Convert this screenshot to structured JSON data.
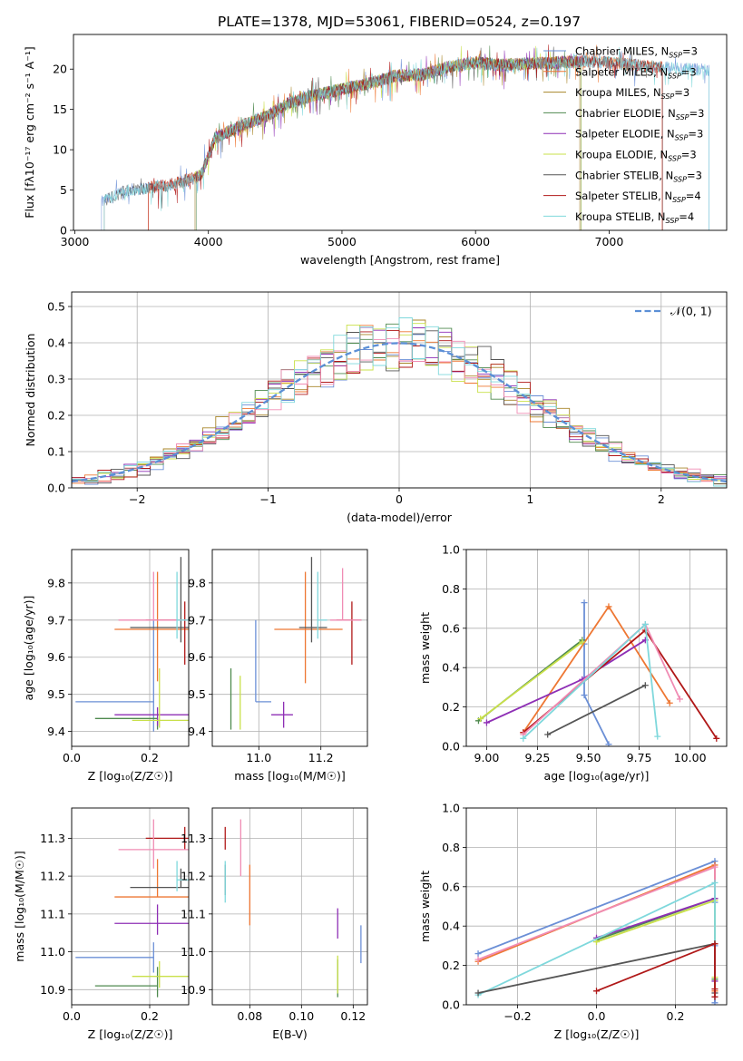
{
  "figure": {
    "title": "PLATE=1378, MJD=53061, FIBERID=0524, z=0.197"
  },
  "chart_data": [
    {
      "id": "spectrum",
      "type": "line",
      "xlabel": "wavelength [Angstrom, rest frame]",
      "ylabel": "Flux [fλ10⁻¹⁷ erg cm⁻² s⁻¹ A⁻¹]",
      "xlim": [
        2990,
        7880
      ],
      "ylim": [
        0,
        24.3
      ],
      "xticks": [
        3000,
        4000,
        5000,
        6000,
        7000
      ],
      "yticks": [
        0,
        5,
        10,
        15,
        20
      ],
      "grid": false,
      "legend_position": "right",
      "shape_x": [
        3200,
        3400,
        3700,
        3900,
        3950,
        4050,
        4250,
        4450,
        4600,
        4800,
        5000,
        5200,
        5400,
        5600,
        5800,
        6000,
        6200,
        6400,
        6600,
        6800,
        7000,
        7200,
        7400,
        7600,
        7800
      ],
      "shape_y": [
        3.5,
        5.0,
        5.6,
        6.5,
        7.0,
        11.5,
        13.0,
        14.3,
        15.8,
        16.8,
        17.5,
        18.2,
        19.2,
        19.3,
        20.3,
        20.8,
        20.5,
        20.7,
        20.8,
        21.0,
        20.8,
        20.5,
        20.2,
        20.0,
        19.8
      ],
      "series": [
        {
          "name": "Chabrier MILES, N_SSP=3",
          "color": "#6b8fd6",
          "xmin": 3200,
          "xmax": 7750
        },
        {
          "name": "Salpeter MILES, N_SSP=3",
          "color": "#ee7733",
          "xmin": 3550,
          "xmax": 7400
        },
        {
          "name": "Kroupa MILES, N_SSP=3",
          "color": "#a8862a",
          "xmin": 3900,
          "xmax": 6780
        },
        {
          "name": "Chabrier ELODIE, N_SSP=3",
          "color": "#4f8a4f",
          "xmin": 3910,
          "xmax": 6790
        },
        {
          "name": "Salpeter ELODIE, N_SSP=3",
          "color": "#8e2fb5",
          "xmin": 3900,
          "xmax": 6790
        },
        {
          "name": "Kroupa ELODIE, N_SSP=3",
          "color": "#c9e04a",
          "xmin": 3900,
          "xmax": 6790
        },
        {
          "name": "Chabrier STELIB, N_SSP=3",
          "color": "#555555",
          "xmin": 3220,
          "xmax": 7400
        },
        {
          "name": "Salpeter STELIB, N_SSP=4",
          "color": "#b01818",
          "xmin": 3550,
          "xmax": 7400
        },
        {
          "name": "Kroupa STELIB, N_SSP=4",
          "color": "#7fd8dc",
          "xmin": 3220,
          "xmax": 7750
        }
      ],
      "legend_labels": [
        {
          "name": "Chabrier MILES, N",
          "sub": "SSP",
          "tail": "=3"
        },
        {
          "name": "Salpeter MILES, N",
          "sub": "SSP",
          "tail": "=3"
        },
        {
          "name": "Kroupa MILES, N",
          "sub": "SSP",
          "tail": "=3"
        },
        {
          "name": "Chabrier ELODIE, N",
          "sub": "SSP",
          "tail": "=3"
        },
        {
          "name": "Salpeter ELODIE, N",
          "sub": "SSP",
          "tail": "=3"
        },
        {
          "name": "Kroupa ELODIE, N",
          "sub": "SSP",
          "tail": "=3"
        },
        {
          "name": "Chabrier STELIB, N",
          "sub": "SSP",
          "tail": "=3"
        },
        {
          "name": "Salpeter STELIB, N",
          "sub": "SSP",
          "tail": "=4"
        },
        {
          "name": "Kroupa STELIB, N",
          "sub": "SSP",
          "tail": "=4"
        }
      ]
    },
    {
      "id": "residual_hist",
      "type": "line",
      "xlabel": "(data-model)/error",
      "ylabel": "Normed distribution",
      "xlim": [
        -2.5,
        2.5
      ],
      "ylim": [
        0,
        0.54
      ],
      "xticks": [
        -2,
        -1,
        0,
        1,
        2
      ],
      "yticks": [
        0,
        0.1,
        0.2,
        0.3,
        0.4,
        0.5
      ],
      "grid": true,
      "bin_width": 0.1,
      "gaussian": {
        "label": "𝒩(0, 1)",
        "mean": 0,
        "sigma": 1,
        "color": "#5b8fd6"
      },
      "legend_position": "top-right"
    },
    {
      "id": "age_vs_Z",
      "type": "scatter",
      "xlabel": "Z [log₁₀(Z/Z☉)]",
      "ylabel": "age  [log₁₀(age/yr)]",
      "xlim": [
        0,
        0.3
      ],
      "ylim": [
        9.36,
        9.89
      ],
      "xticks": [
        0.0,
        0.2
      ],
      "yticks": [
        9.4,
        9.5,
        9.6,
        9.7,
        9.8
      ],
      "grid": true,
      "points": [
        {
          "color": "#6b8fd6",
          "x": 0.21,
          "xerr": [
            0.2,
            0.0
          ],
          "y": 9.48,
          "yerr": [
            0.08,
            0.22
          ]
        },
        {
          "color": "#ee7733",
          "x": 0.22,
          "xerr": [
            0.11,
            0.08
          ],
          "y": 9.675,
          "yerr": [
            0.14,
            0.155
          ]
        },
        {
          "color": "#4f8a4f",
          "x": 0.22,
          "xerr": [
            0.16,
            0.0
          ],
          "y": 9.435,
          "yerr": [
            0.03,
            0.0
          ]
        },
        {
          "color": "#8e2fb5",
          "x": 0.22,
          "xerr": [
            0.11,
            0.08
          ],
          "y": 9.445,
          "yerr": [
            0.03,
            0.02
          ]
        },
        {
          "color": "#c9e04a",
          "x": 0.225,
          "xerr": [
            0.07,
            0.075
          ],
          "y": 9.43,
          "yerr": [
            0.02,
            0.14
          ]
        },
        {
          "color": "#555555",
          "x": 0.28,
          "xerr": [
            0.13,
            0.02
          ],
          "y": 9.68,
          "yerr": [
            0.04,
            0.19
          ]
        },
        {
          "color": "#b01818",
          "x": 0.29,
          "xerr": [
            0.1,
            0.01
          ],
          "y": 9.7,
          "yerr": [
            0.12,
            0.05
          ]
        },
        {
          "color": "#f08cb4",
          "x": 0.21,
          "xerr": [
            0.09,
            0.09
          ],
          "y": 9.7,
          "yerr": [
            0.0,
            0.13
          ]
        },
        {
          "color": "#7fd8dc",
          "x": 0.27,
          "xerr": [
            0.0,
            0.03
          ],
          "y": 9.7,
          "yerr": [
            0.05,
            0.13
          ]
        }
      ]
    },
    {
      "id": "age_vs_mass",
      "type": "scatter",
      "xlabel": "mass [log₁₀(M/M☉)]",
      "ylabel": "",
      "xlim": [
        10.85,
        11.35
      ],
      "ylim": [
        9.36,
        9.89
      ],
      "xticks": [
        11.0,
        11.2
      ],
      "yticks": [
        9.4,
        9.5,
        9.6,
        9.7,
        9.8
      ],
      "grid": true,
      "points": [
        {
          "color": "#6b8fd6",
          "x": 10.99,
          "xerr": [
            0.0,
            0.05
          ],
          "y": 9.48,
          "yerr": [
            0.0,
            0.22
          ]
        },
        {
          "color": "#ee7733",
          "x": 11.15,
          "xerr": [
            0.1,
            0.12
          ],
          "y": 9.675,
          "yerr": [
            0.145,
            0.155
          ]
        },
        {
          "color": "#4f8a4f",
          "x": 10.91,
          "xerr": [
            0.0,
            0.0
          ],
          "y": 9.435,
          "yerr": [
            0.03,
            0.135
          ]
        },
        {
          "color": "#8e2fb5",
          "x": 11.08,
          "xerr": [
            0.04,
            0.03
          ],
          "y": 9.445,
          "yerr": [
            0.035,
            0.035
          ]
        },
        {
          "color": "#c9e04a",
          "x": 10.94,
          "xerr": [
            0.0,
            0.0
          ],
          "y": 9.43,
          "yerr": [
            0.025,
            0.12
          ]
        },
        {
          "color": "#555555",
          "x": 11.17,
          "xerr": [
            0.04,
            0.05
          ],
          "y": 9.68,
          "yerr": [
            0.04,
            0.19
          ]
        },
        {
          "color": "#b01818",
          "x": 11.3,
          "xerr": [
            0.05,
            0.03
          ],
          "y": 9.7,
          "yerr": [
            0.12,
            0.05
          ]
        },
        {
          "color": "#f08cb4",
          "x": 11.27,
          "xerr": [
            0.04,
            0.06
          ],
          "y": 9.7,
          "yerr": [
            0.0,
            0.14
          ]
        },
        {
          "color": "#7fd8dc",
          "x": 11.19,
          "xerr": [
            0.0,
            0.03
          ],
          "y": 9.7,
          "yerr": [
            0.05,
            0.13
          ]
        }
      ]
    },
    {
      "id": "mass_weight_vs_age",
      "type": "line",
      "xlabel": "age  [log₁₀(age/yr)]",
      "ylabel": "mass weight",
      "xlim": [
        8.9,
        10.18
      ],
      "ylim": [
        0,
        1
      ],
      "xticks": [
        9.0,
        9.25,
        9.5,
        9.75,
        10.0
      ],
      "yticks": [
        0.0,
        0.2,
        0.4,
        0.6,
        0.8,
        1.0
      ],
      "grid": true,
      "series": [
        {
          "color": "#6b8fd6",
          "x": [
            9.48,
            9.48,
            9.48,
            9.6
          ],
          "y": [
            0.73,
            0.52,
            0.26,
            0.01
          ],
          "connect": false
        },
        {
          "color": "#ee7733",
          "x": [
            9.18,
            9.6,
            9.9
          ],
          "y": [
            0.07,
            0.71,
            0.22
          ],
          "connect": true
        },
        {
          "color": "#4f8a4f",
          "x": [
            8.96,
            9.47
          ],
          "y": [
            0.13,
            0.54
          ],
          "connect": true
        },
        {
          "color": "#8e2fb5",
          "x": [
            9.0,
            9.47,
            9.78
          ],
          "y": [
            0.12,
            0.34,
            0.54
          ],
          "connect": true
        },
        {
          "color": "#c9e04a",
          "x": [
            8.97,
            9.47
          ],
          "y": [
            0.14,
            0.53
          ],
          "connect": true
        },
        {
          "color": "#555555",
          "x": [
            9.3,
            9.78
          ],
          "y": [
            0.06,
            0.31
          ],
          "connect": true
        },
        {
          "color": "#b01818",
          "x": [
            9.18,
            9.78,
            10.13
          ],
          "y": [
            0.07,
            0.59,
            0.04
          ],
          "connect": true
        },
        {
          "color": "#f08cb4",
          "x": [
            9.18,
            9.78,
            9.95
          ],
          "y": [
            0.06,
            0.62,
            0.24
          ],
          "connect": true
        },
        {
          "color": "#7fd8dc",
          "x": [
            9.18,
            9.78,
            9.84
          ],
          "y": [
            0.04,
            0.62,
            0.05
          ],
          "connect": true
        }
      ]
    },
    {
      "id": "mass_vs_Z",
      "type": "scatter",
      "xlabel": "Z [log₁₀(Z/Z☉)]",
      "ylabel": "mass [log₁₀(M/M☉)]",
      "xlim": [
        0,
        0.3
      ],
      "ylim": [
        10.86,
        11.38
      ],
      "xticks": [
        0.0,
        0.2
      ],
      "yticks": [
        10.9,
        11.0,
        11.1,
        11.2,
        11.3
      ],
      "grid": true,
      "points": [
        {
          "color": "#6b8fd6",
          "x": 0.21,
          "xerr": [
            0.2,
            0.0
          ],
          "y": 10.985,
          "yerr": [
            0.04,
            0.04
          ]
        },
        {
          "color": "#ee7733",
          "x": 0.22,
          "xerr": [
            0.11,
            0.08
          ],
          "y": 11.145,
          "yerr": [
            0.0,
            0.1
          ]
        },
        {
          "color": "#4f8a4f",
          "x": 0.22,
          "xerr": [
            0.16,
            0.0
          ],
          "y": 10.91,
          "yerr": [
            0.03,
            0.05
          ]
        },
        {
          "color": "#8e2fb5",
          "x": 0.22,
          "xerr": [
            0.11,
            0.08
          ],
          "y": 11.075,
          "yerr": [
            0.03,
            0.05
          ]
        },
        {
          "color": "#c9e04a",
          "x": 0.225,
          "xerr": [
            0.07,
            0.075
          ],
          "y": 10.935,
          "yerr": [
            0.03,
            0.04
          ]
        },
        {
          "color": "#555555",
          "x": 0.28,
          "xerr": [
            0.13,
            0.02
          ],
          "y": 11.17,
          "yerr": [
            0.0,
            0.05
          ]
        },
        {
          "color": "#b01818",
          "x": 0.29,
          "xerr": [
            0.1,
            0.01
          ],
          "y": 11.3,
          "yerr": [
            0.03,
            0.03
          ]
        },
        {
          "color": "#f08cb4",
          "x": 0.21,
          "xerr": [
            0.09,
            0.09
          ],
          "y": 11.27,
          "yerr": [
            0.05,
            0.08
          ]
        },
        {
          "color": "#7fd8dc",
          "x": 0.27,
          "xerr": [
            0.0,
            0.03
          ],
          "y": 11.19,
          "yerr": [
            0.03,
            0.05
          ]
        }
      ]
    },
    {
      "id": "mass_vs_ebv",
      "type": "scatter",
      "xlabel": "E(B-V)",
      "ylabel": "",
      "xlim": [
        0.0655,
        0.1255
      ],
      "ylim": [
        10.86,
        11.38
      ],
      "xticks": [
        0.08,
        0.1,
        0.12
      ],
      "yticks": [
        10.9,
        11.0,
        11.1,
        11.2,
        11.3
      ],
      "grid": true,
      "points": [
        {
          "color": "#6b8fd6",
          "x": 0.123,
          "xerr": [
            0,
            0
          ],
          "y": 11.02,
          "yerr": [
            0.05,
            0.05
          ]
        },
        {
          "color": "#ee7733",
          "x": 0.08,
          "xerr": [
            0,
            0
          ],
          "y": 11.15,
          "yerr": [
            0.08,
            0.08
          ]
        },
        {
          "color": "#4f8a4f",
          "x": 0.114,
          "xerr": [
            0,
            0
          ],
          "y": 10.91,
          "yerr": [
            0.03,
            0.07
          ]
        },
        {
          "color": "#8e2fb5",
          "x": 0.114,
          "xerr": [
            0,
            0
          ],
          "y": 11.075,
          "yerr": [
            0.04,
            0.04
          ]
        },
        {
          "color": "#c9e04a",
          "x": 0.114,
          "xerr": [
            0,
            0
          ],
          "y": 10.93,
          "yerr": [
            0.04,
            0.06
          ]
        },
        {
          "color": "#555555",
          "x": 0.0705,
          "xerr": [
            0,
            0
          ],
          "y": 11.18,
          "yerr": [
            0.03,
            0.05
          ]
        },
        {
          "color": "#b01818",
          "x": 0.0705,
          "xerr": [
            0,
            0
          ],
          "y": 11.3,
          "yerr": [
            0.03,
            0.03
          ]
        },
        {
          "color": "#f08cb4",
          "x": 0.0765,
          "xerr": [
            0,
            0
          ],
          "y": 11.27,
          "yerr": [
            0.07,
            0.08
          ]
        },
        {
          "color": "#7fd8dc",
          "x": 0.0705,
          "xerr": [
            0,
            0
          ],
          "y": 11.18,
          "yerr": [
            0.05,
            0.06
          ]
        }
      ]
    },
    {
      "id": "mass_weight_vs_Z",
      "type": "line",
      "xlabel": "Z [log₁₀(Z/Z☉)]",
      "ylabel": "mass weight",
      "xlim": [
        -0.33,
        0.33
      ],
      "ylim": [
        0,
        1
      ],
      "xticks": [
        -0.2,
        0.0,
        0.2
      ],
      "yticks": [
        0.0,
        0.2,
        0.4,
        0.6,
        0.8,
        1.0
      ],
      "grid": true,
      "series": [
        {
          "color": "#6b8fd6",
          "x": [
            -0.3,
            0.3,
            0.3,
            0.3,
            0.3
          ],
          "y": [
            0.26,
            0.73,
            0.52,
            0.3,
            0.01
          ]
        },
        {
          "color": "#ee7733",
          "x": [
            -0.3,
            0.3,
            0.3
          ],
          "y": [
            0.22,
            0.71,
            0.07
          ]
        },
        {
          "color": "#f08cb4",
          "x": [
            -0.3,
            0.3,
            0.3
          ],
          "y": [
            0.23,
            0.7,
            0.06
          ]
        },
        {
          "color": "#4f8a4f",
          "x": [
            0.0,
            0.3,
            0.3
          ],
          "y": [
            0.33,
            0.54,
            0.13
          ]
        },
        {
          "color": "#8e2fb5",
          "x": [
            0.0,
            0.3,
            0.3
          ],
          "y": [
            0.34,
            0.54,
            0.12
          ]
        },
        {
          "color": "#c9e04a",
          "x": [
            0.0,
            0.3,
            0.3
          ],
          "y": [
            0.32,
            0.53,
            0.14
          ]
        },
        {
          "color": "#7fd8dc",
          "x": [
            -0.3,
            0.3,
            0.3
          ],
          "y": [
            0.05,
            0.62,
            0.04
          ]
        },
        {
          "color": "#555555",
          "x": [
            -0.3,
            0.3,
            0.3
          ],
          "y": [
            0.06,
            0.31,
            0.06
          ]
        },
        {
          "color": "#b01818",
          "x": [
            0.0,
            0.3,
            0.3,
            0.3
          ],
          "y": [
            0.07,
            0.31,
            0.08,
            0.04
          ]
        }
      ]
    }
  ]
}
